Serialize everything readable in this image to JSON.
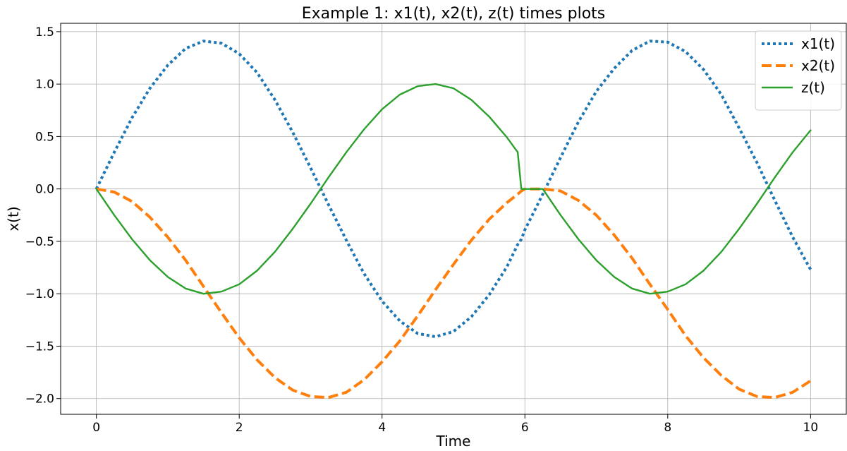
{
  "chart_data": {
    "type": "line",
    "title": "Example 1: x1(t), x2(t), z(t) times plots",
    "xlabel": "Time",
    "ylabel": "x(t)",
    "xlim": [
      -0.5,
      10.5
    ],
    "ylim": [
      -2.15,
      1.58
    ],
    "xticks": [
      0,
      2,
      4,
      6,
      8,
      10
    ],
    "xtick_labels": [
      "0",
      "2",
      "4",
      "6",
      "8",
      "10"
    ],
    "yticks": [
      1.5,
      1.0,
      0.5,
      0.0,
      -0.5,
      -1.0,
      -1.5,
      -2.0
    ],
    "ytick_labels": [
      "1.5",
      "1.0",
      "0.5",
      "0.0",
      "−0.5",
      "−1.0",
      "−1.5",
      "−2.0"
    ],
    "grid": true,
    "legend_position": "top-right",
    "x": [
      0,
      0.25,
      0.5,
      0.75,
      1,
      1.25,
      1.5,
      1.75,
      2,
      2.25,
      2.5,
      2.75,
      3,
      3.25,
      3.5,
      3.75,
      4,
      4.25,
      4.5,
      4.75,
      5,
      5.25,
      5.5,
      5.75,
      5.9,
      5.95,
      6,
      6.25,
      6.5,
      6.75,
      7,
      7.25,
      7.5,
      7.75,
      8,
      8.25,
      8.5,
      8.75,
      9,
      9.25,
      9.5,
      9.75,
      10
    ],
    "series": [
      {
        "name": "x1(t)",
        "color": "#1f77b4",
        "style": "dotted",
        "values": [
          0,
          0.35,
          0.68,
          0.96,
          1.18,
          1.34,
          1.41,
          1.39,
          1.29,
          1.11,
          0.85,
          0.54,
          0.2,
          -0.15,
          -0.49,
          -0.81,
          -1.07,
          -1.26,
          -1.38,
          -1.41,
          -1.36,
          -1.22,
          -1.01,
          -0.74,
          -0.53,
          -0.48,
          -0.39,
          -0.05,
          0.3,
          0.64,
          0.93,
          1.15,
          1.32,
          1.41,
          1.4,
          1.31,
          1.14,
          0.9,
          0.58,
          0.25,
          -0.11,
          -0.46,
          -0.77
        ]
      },
      {
        "name": "x2(t)",
        "color": "#ff7f0e",
        "style": "dashed",
        "values": [
          0,
          -0.03,
          -0.12,
          -0.27,
          -0.46,
          -0.68,
          -0.93,
          -1.18,
          -1.42,
          -1.63,
          -1.8,
          -1.92,
          -1.98,
          -1.99,
          -1.94,
          -1.82,
          -1.65,
          -1.45,
          -1.21,
          -0.96,
          -0.72,
          -0.49,
          -0.29,
          -0.13,
          -0.05,
          -0.02,
          0,
          0,
          -0.02,
          -0.11,
          -0.25,
          -0.44,
          -0.66,
          -0.91,
          -1.15,
          -1.4,
          -1.61,
          -1.78,
          -1.91,
          -1.98,
          -1.99,
          -1.94,
          -1.83
        ]
      },
      {
        "name": "z(t)",
        "color": "#2ca02c",
        "style": "solid",
        "values": [
          0,
          -0.25,
          -0.48,
          -0.68,
          -0.84,
          -0.95,
          -1.0,
          -0.98,
          -0.91,
          -0.78,
          -0.6,
          -0.38,
          -0.14,
          0.11,
          0.35,
          0.57,
          0.76,
          0.9,
          0.98,
          1.0,
          0.96,
          0.85,
          0.69,
          0.49,
          0.35,
          0,
          0,
          0,
          -0.25,
          -0.48,
          -0.68,
          -0.84,
          -0.95,
          -1.0,
          -0.98,
          -0.91,
          -0.78,
          -0.6,
          -0.38,
          -0.14,
          0.11,
          0.35,
          0.56
        ]
      }
    ]
  }
}
